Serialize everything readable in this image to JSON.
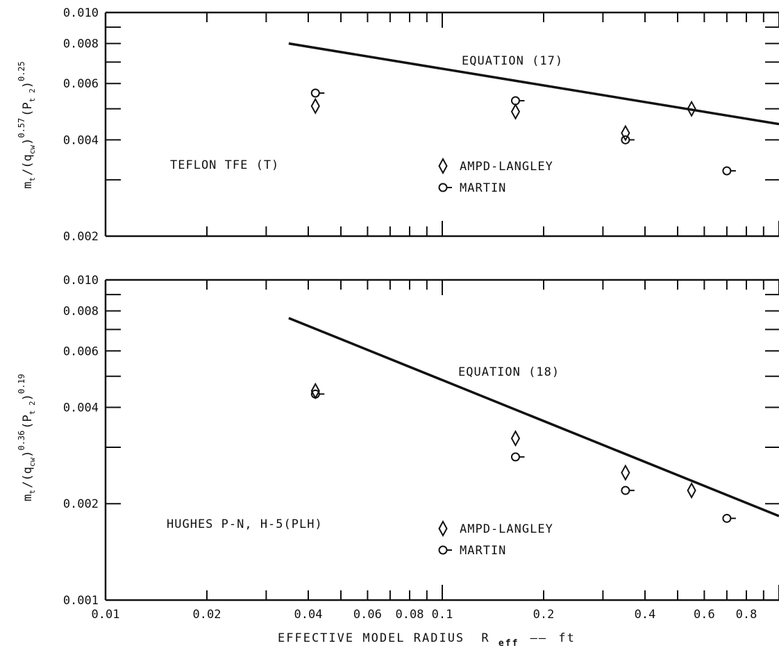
{
  "xaxis": {
    "label": "EFFECTIVE MODEL RADIUS",
    "symbol": "R",
    "symbol_sub": "eff",
    "unit": "ft",
    "scale": "log",
    "range": [
      0.01,
      1.0
    ],
    "tick_labels": [
      {
        "value": 0.01,
        "text": "0.01"
      },
      {
        "value": 0.02,
        "text": "0.02"
      },
      {
        "value": 0.04,
        "text": "0.04"
      },
      {
        "value": 0.06,
        "text": "0.06"
      },
      {
        "value": 0.08,
        "text": "0.08"
      },
      {
        "value": 0.1,
        "text": "0.1"
      },
      {
        "value": 0.2,
        "text": "0.2"
      },
      {
        "value": 0.4,
        "text": "0.4"
      },
      {
        "value": 0.6,
        "text": "0.6"
      },
      {
        "value": 0.8,
        "text": "0.8"
      }
    ]
  },
  "chart_data": [
    {
      "type": "scatter",
      "panel": "top",
      "title": "",
      "ylabel": {
        "m": "m",
        "m_sub": "t",
        "q": "q",
        "q_sub": "cw",
        "exp1": "0.57",
        "p": "P",
        "p_sub": "t",
        "p_subsub": "2",
        "exp2": "0.25"
      },
      "yscale": "log",
      "ylim": [
        0.002,
        0.01
      ],
      "ytick_labels": [
        {
          "value": 0.002,
          "text": "0.002"
        },
        {
          "value": 0.004,
          "text": "0.004"
        },
        {
          "value": 0.006,
          "text": "0.006"
        },
        {
          "value": 0.008,
          "text": "0.008"
        },
        {
          "value": 0.01,
          "text": "0.010"
        }
      ],
      "material_label": "TEFLON TFE (T)",
      "equation": {
        "label": "EQUATION (17)",
        "x": [
          0.035,
          1.0
        ],
        "y": [
          0.008,
          0.00448
        ]
      },
      "series": [
        {
          "name": "AMPD-LANGLEY",
          "marker": "diamond",
          "x": [
            0.042,
            0.165,
            0.35,
            0.55
          ],
          "y": [
            0.0051,
            0.0049,
            0.0042,
            0.005
          ]
        },
        {
          "name": "MARTIN",
          "marker": "circle-tick",
          "x": [
            0.042,
            0.165,
            0.35,
            0.7
          ],
          "y": [
            0.0056,
            0.0053,
            0.004,
            0.0032
          ]
        }
      ],
      "grid": false
    },
    {
      "type": "scatter",
      "panel": "bottom",
      "title": "",
      "ylabel": {
        "m": "m",
        "m_sub": "t",
        "q": "q",
        "q_sub": "cw",
        "exp1": "0.36",
        "p": "P",
        "p_sub": "t",
        "p_subsub": "2",
        "exp2": "0.19"
      },
      "yscale": "log",
      "ylim": [
        0.001,
        0.01
      ],
      "ytick_labels": [
        {
          "value": 0.001,
          "text": "0.001"
        },
        {
          "value": 0.002,
          "text": "0.002"
        },
        {
          "value": 0.004,
          "text": "0.004"
        },
        {
          "value": 0.006,
          "text": "0.006"
        },
        {
          "value": 0.008,
          "text": "0.008"
        },
        {
          "value": 0.01,
          "text": "0.010"
        }
      ],
      "material_label": "HUGHES P-N, H-5(PLH)",
      "equation": {
        "label": "EQUATION (18)",
        "x": [
          0.035,
          1.0
        ],
        "y": [
          0.0076,
          0.00183
        ]
      },
      "series": [
        {
          "name": "AMPD-LANGLEY",
          "marker": "diamond",
          "x": [
            0.042,
            0.165,
            0.35,
            0.55
          ],
          "y": [
            0.0045,
            0.0032,
            0.0025,
            0.0022
          ]
        },
        {
          "name": "MARTIN",
          "marker": "circle-tick",
          "x": [
            0.042,
            0.165,
            0.35,
            0.7
          ],
          "y": [
            0.0044,
            0.0028,
            0.0022,
            0.0018
          ]
        }
      ],
      "grid": false
    }
  ]
}
